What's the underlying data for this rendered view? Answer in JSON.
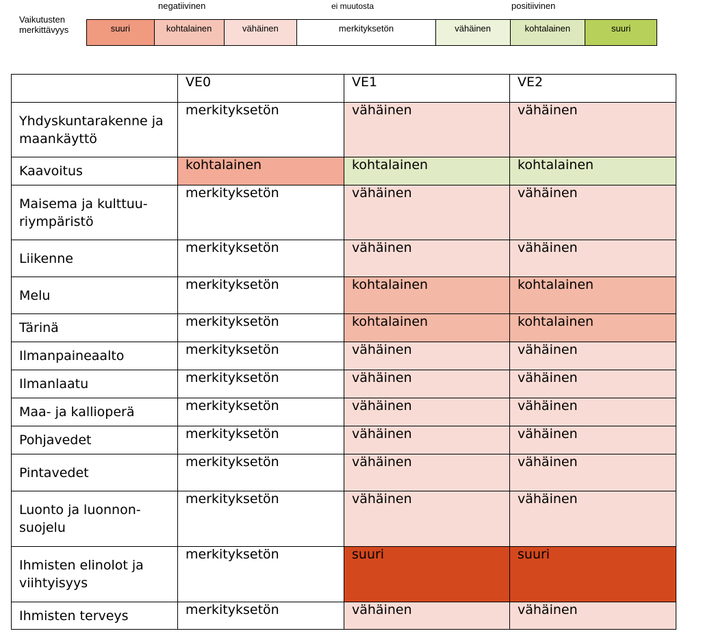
{
  "legend": {
    "title": "Vaikutusten merkittävyys",
    "group_labels": {
      "negative": "negatiivinen",
      "neutral": "ei muutosta",
      "positive": "positiivinen"
    },
    "scale": [
      {
        "label": "suuri",
        "color": "#f09a80"
      },
      {
        "label": "kohtalainen",
        "color": "#f6c4b6"
      },
      {
        "label": "vähäinen",
        "color": "#fadcd6"
      },
      {
        "label": "merkityksetön",
        "color": "#ffffff"
      },
      {
        "label": "vähäinen",
        "color": "#ecf3da"
      },
      {
        "label": "kohtalainen",
        "color": "#dde9bd"
      },
      {
        "label": "suuri",
        "color": "#b7d05a"
      }
    ]
  },
  "colors": {
    "none": "#ffffff",
    "neg_small": "#f9dbd5",
    "neg_moderate": "#f4b8a6",
    "neg_moderate_alt": "#f3aa96",
    "neg_large": "#d4481e",
    "pos_moderate": "#e0eac4"
  },
  "table": {
    "headers": [
      "",
      "VE0",
      "VE1",
      "VE2"
    ],
    "rows": [
      {
        "topic": "Yhdyskuntarakenne ja maankäyttö",
        "cells": [
          {
            "text": "merkityksetön",
            "color": "#ffffff"
          },
          {
            "text": "vähäinen",
            "color": "#f9dbd5"
          },
          {
            "text": "vähäinen",
            "color": "#f9dbd5"
          }
        ]
      },
      {
        "topic": "Kaavoitus",
        "cells": [
          {
            "text": "kohtalainen",
            "color": "#f3aa96"
          },
          {
            "text": "kohtalainen",
            "color": "#e0eac4"
          },
          {
            "text": "kohtalainen",
            "color": "#e0eac4"
          }
        ]
      },
      {
        "topic": "Maisema ja kulttuu-riympäristö",
        "cells": [
          {
            "text": "merkityksetön",
            "color": "#ffffff"
          },
          {
            "text": "vähäinen",
            "color": "#f9dbd5"
          },
          {
            "text": "vähäinen",
            "color": "#f9dbd5"
          }
        ]
      },
      {
        "topic": "Liikenne",
        "cells": [
          {
            "text": "merkityksetön",
            "color": "#ffffff"
          },
          {
            "text": "vähäinen",
            "color": "#f9dbd5"
          },
          {
            "text": "vähäinen",
            "color": "#f9dbd5"
          }
        ]
      },
      {
        "topic": "Melu",
        "cells": [
          {
            "text": "merkityksetön",
            "color": "#ffffff"
          },
          {
            "text": "kohtalainen",
            "color": "#f4b8a6"
          },
          {
            "text": "kohtalainen",
            "color": "#f4b8a6"
          }
        ]
      },
      {
        "topic": "Tärinä",
        "cells": [
          {
            "text": "merkityksetön",
            "color": "#ffffff"
          },
          {
            "text": "kohtalainen",
            "color": "#f4b8a6"
          },
          {
            "text": "kohtalainen",
            "color": "#f4b8a6"
          }
        ]
      },
      {
        "topic": "Ilmanpaineaalto",
        "cells": [
          {
            "text": "merkityksetön",
            "color": "#ffffff"
          },
          {
            "text": "vähäinen",
            "color": "#f9dbd5"
          },
          {
            "text": "vähäinen",
            "color": "#f9dbd5"
          }
        ]
      },
      {
        "topic": "Ilmanlaatu",
        "cells": [
          {
            "text": "merkityksetön",
            "color": "#ffffff"
          },
          {
            "text": "vähäinen",
            "color": "#f9dbd5"
          },
          {
            "text": "vähäinen",
            "color": "#f9dbd5"
          }
        ]
      },
      {
        "topic": "Maa- ja kallioperä",
        "cells": [
          {
            "text": "merkityksetön",
            "color": "#ffffff"
          },
          {
            "text": "vähäinen",
            "color": "#f9dbd5"
          },
          {
            "text": "vähäinen",
            "color": "#f9dbd5"
          }
        ]
      },
      {
        "topic": "Pohjavedet",
        "cells": [
          {
            "text": "merkityksetön",
            "color": "#ffffff"
          },
          {
            "text": "vähäinen",
            "color": "#f9dbd5"
          },
          {
            "text": "vähäinen",
            "color": "#f9dbd5"
          }
        ]
      },
      {
        "topic": "Pintavedet",
        "cells": [
          {
            "text": "merkityksetön",
            "color": "#ffffff"
          },
          {
            "text": "vähäinen",
            "color": "#f9dbd5"
          },
          {
            "text": "vähäinen",
            "color": "#f9dbd5"
          }
        ]
      },
      {
        "topic": "Luonto ja luonnon-suojelu",
        "cells": [
          {
            "text": "merkityksetön",
            "color": "#ffffff"
          },
          {
            "text": "vähäinen",
            "color": "#f9dbd5"
          },
          {
            "text": "vähäinen",
            "color": "#f9dbd5"
          }
        ]
      },
      {
        "topic": "Ihmisten elinolot ja viihtyisyys",
        "cells": [
          {
            "text": "merkityksetön",
            "color": "#ffffff"
          },
          {
            "text": "suuri",
            "color": "#d4481e"
          },
          {
            "text": "suuri",
            "color": "#d4481e"
          }
        ]
      },
      {
        "topic": "Ihmisten terveys",
        "cells": [
          {
            "text": "merkityksetön",
            "color": "#ffffff"
          },
          {
            "text": "vähäinen",
            "color": "#f9dbd5"
          },
          {
            "text": "vähäinen",
            "color": "#f9dbd5"
          }
        ]
      }
    ]
  }
}
